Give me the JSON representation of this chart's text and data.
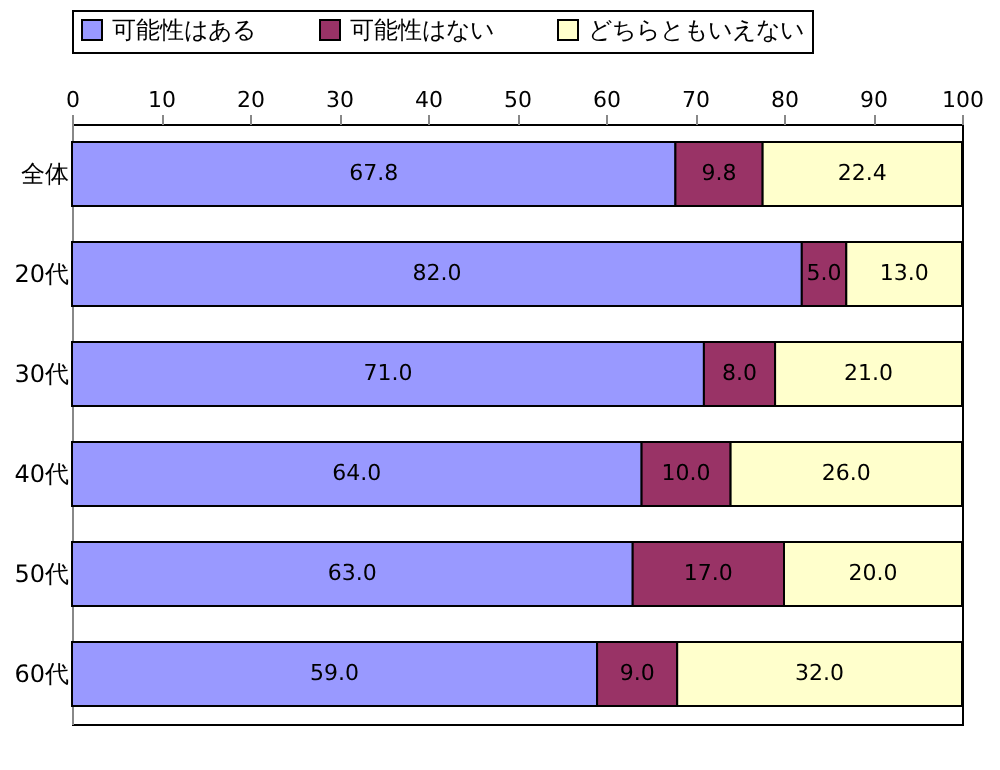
{
  "chart_data": {
    "type": "bar",
    "orientation": "horizontal",
    "stacked": true,
    "categories": [
      "全体",
      "20代",
      "30代",
      "40代",
      "50代",
      "60代"
    ],
    "series": [
      {
        "name": "可能性はある",
        "color": "#9999ff",
        "values": [
          67.8,
          82.0,
          71.0,
          64.0,
          63.0,
          59.0
        ],
        "value_labels": [
          "67.8",
          "82.0",
          "71.0",
          "64.0",
          "63.0",
          "59.0"
        ]
      },
      {
        "name": "可能性はない",
        "color": "#993366",
        "values": [
          9.8,
          5.0,
          8.0,
          10.0,
          17.0,
          9.0
        ],
        "value_labels": [
          "9.8",
          "5.0",
          "8.0",
          "10.0",
          "17.0",
          "9.0"
        ]
      },
      {
        "name": "どちらともいえない",
        "color": "#ffffcc",
        "values": [
          22.4,
          13.0,
          21.0,
          26.0,
          20.0,
          32.0
        ],
        "value_labels": [
          "22.4",
          "13.0",
          "21.0",
          "26.0",
          "20.0",
          "32.0"
        ]
      }
    ],
    "xlim": [
      0,
      100
    ],
    "xticks": [
      0,
      10,
      20,
      30,
      40,
      50,
      60,
      70,
      80,
      90,
      100
    ],
    "legend": "top"
  }
}
